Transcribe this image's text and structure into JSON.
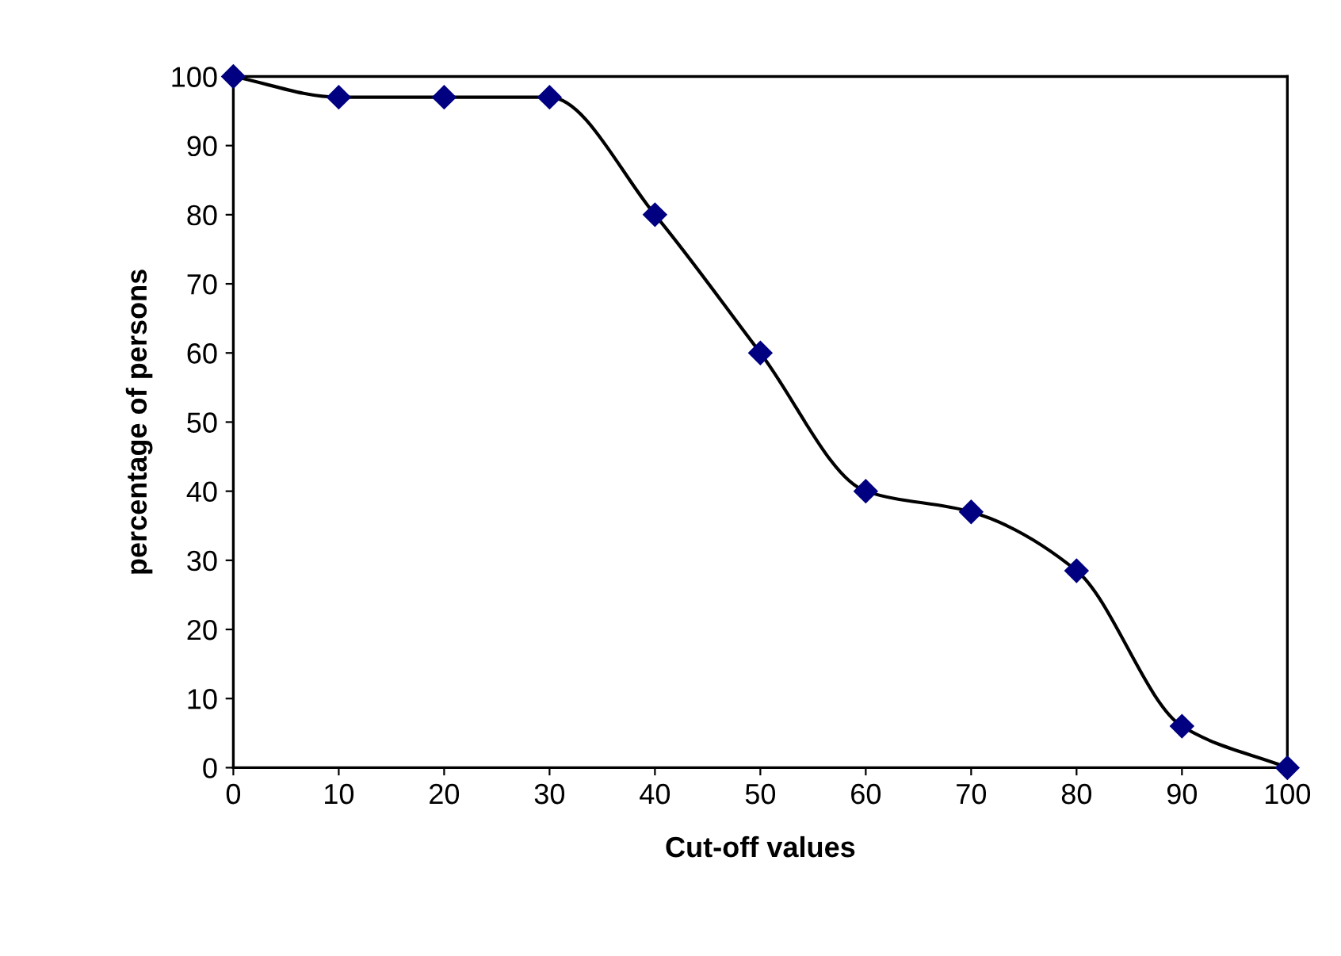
{
  "chart_data": {
    "type": "line",
    "xlabel": "Cut-off values",
    "ylabel": "percentage of persons",
    "x": [
      0,
      10,
      20,
      30,
      40,
      50,
      60,
      70,
      80,
      90,
      100
    ],
    "series": [
      {
        "color": "#000080",
        "values": [
          100,
          97,
          97,
          97,
          80,
          60,
          40,
          37,
          28.5,
          6,
          0
        ]
      }
    ],
    "xlim": [
      0,
      100
    ],
    "ylim": [
      0,
      100
    ],
    "xticks": [
      0,
      10,
      20,
      30,
      40,
      50,
      60,
      70,
      80,
      90,
      100
    ],
    "yticks": [
      0,
      10,
      20,
      30,
      40,
      50,
      60,
      70,
      80,
      90,
      100
    ],
    "grid": false,
    "legend": false,
    "marker": "diamond",
    "line_style": "solid"
  }
}
